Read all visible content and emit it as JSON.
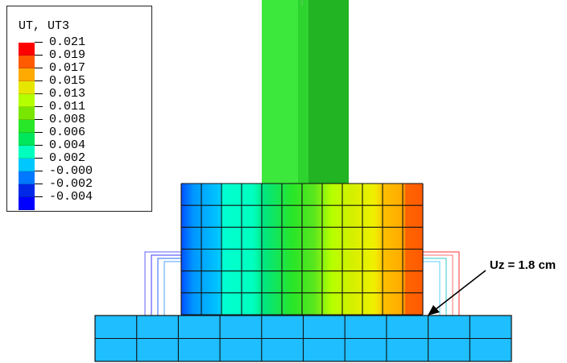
{
  "legend": {
    "title": "UT, UT3",
    "values": [
      "0.021",
      "0.019",
      "0.017",
      "0.015",
      "0.013",
      "0.011",
      "0.008",
      "0.006",
      "0.004",
      "0.002",
      "-0.000",
      "-0.002",
      "-0.004"
    ],
    "colors": [
      "#ff0000",
      "#ff5a00",
      "#ffaa00",
      "#e6e600",
      "#b4ff00",
      "#78e600",
      "#28e628",
      "#00e65a",
      "#00ffbe",
      "#00c8ff",
      "#0078ff",
      "#0028e6",
      "#0000ff"
    ]
  },
  "annotation": {
    "label": "Uz = 1.8 cm"
  },
  "colors": {
    "column_light": "#3de83d",
    "column_mid": "#2ed42e",
    "column_dark": "#22b422",
    "slab": "#1ebeff",
    "mesh_line": "#111111"
  }
}
